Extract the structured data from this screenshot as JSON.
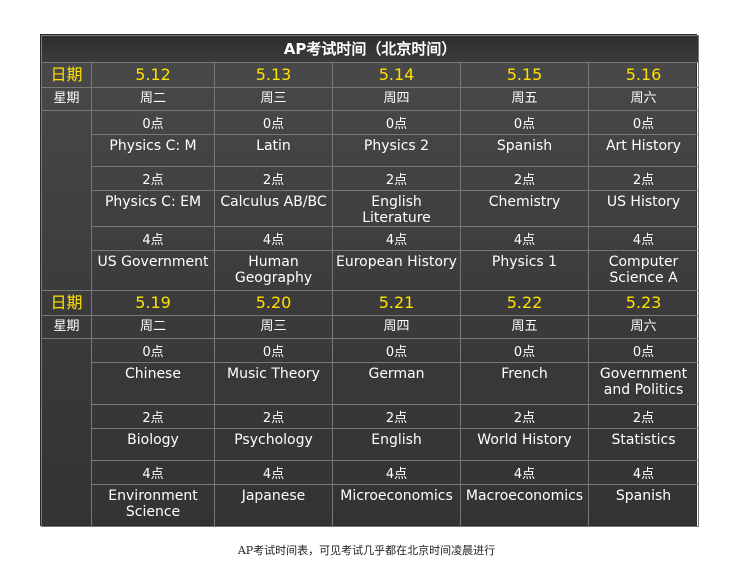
{
  "title": "AP考试时间（北京时间）",
  "labels": {
    "date": "日期",
    "weekday": "星期"
  },
  "week1": {
    "dates": [
      "5.12",
      "5.13",
      "5.14",
      "5.15",
      "5.16"
    ],
    "weekdays": [
      "周二",
      "周三",
      "周四",
      "周五",
      "周六"
    ],
    "times": [
      "0点",
      "2点",
      "4点"
    ],
    "slot0": [
      "Physics C: M",
      "Latin",
      "Physics 2",
      "Spanish",
      "Art History"
    ],
    "slot2": [
      "Physics C: EM",
      "Calculus AB/BC",
      "English Literature",
      "Chemistry",
      "US History"
    ],
    "slot4": [
      "US Government",
      "Human Geography",
      "European History",
      "Physics 1",
      "Computer Science A"
    ]
  },
  "week2": {
    "dates": [
      "5.19",
      "5.20",
      "5.21",
      "5.22",
      "5.23"
    ],
    "weekdays": [
      "周二",
      "周三",
      "周四",
      "周五",
      "周六"
    ],
    "times": [
      "0点",
      "2点",
      "4点"
    ],
    "slot0": [
      "Chinese",
      "Music Theory",
      "German",
      "French",
      "Government and Politics"
    ],
    "slot2": [
      "Biology",
      "Psychology",
      "English",
      "World History",
      "Statistics"
    ],
    "slot4": [
      "Environment Science",
      "Japanese",
      "Microeconomics",
      "Macroeconomics",
      "Spanish"
    ]
  },
  "caption": "AP考试时间表，可见考试几乎都在北京时间凌晨进行",
  "colors": {
    "date_text": "#ffe100",
    "table_bg": "#3e3e3e",
    "grid": "#787878"
  }
}
